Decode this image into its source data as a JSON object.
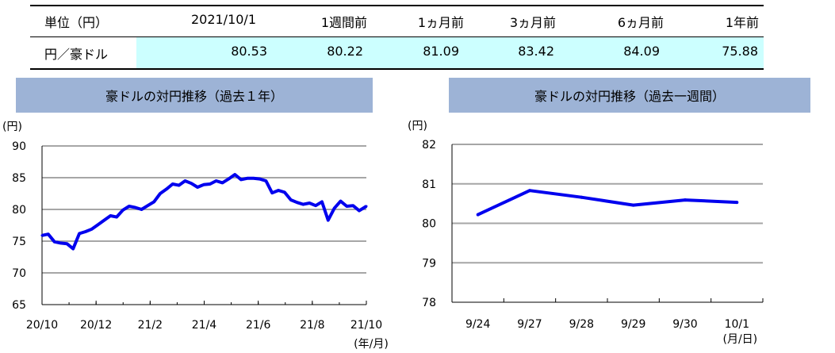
{
  "table": {
    "headers": [
      "単位（円）",
      "2021/10/1",
      "1週間前",
      "1ヵ月前",
      "3ヵ月前",
      "6ヵ月前",
      "1年前"
    ],
    "row": {
      "label": "円／豪ドル",
      "values": [
        "80.53",
        "80.22",
        "81.09",
        "83.42",
        "84.09",
        "75.88"
      ]
    },
    "highlight_color": "#ccffff"
  },
  "colors": {
    "panel_title_bg": "#9db3d6",
    "series": "#0000ee",
    "grid": "#a6a6a6"
  },
  "chart_data": [
    {
      "type": "line",
      "title": "豪ドルの対円推移（過去１年）",
      "yunit": "(円)",
      "xunit": "(年/月)",
      "ylim": [
        65,
        90
      ],
      "yticks": [
        "90",
        "85",
        "80",
        "75",
        "70",
        "65"
      ],
      "xticks": [
        "20/10",
        "20/12",
        "21/2",
        "21/4",
        "21/6",
        "21/8",
        "21/10"
      ],
      "grid": true,
      "series": [
        {
          "x": [
            "2020-10-01",
            "2020-10-08",
            "2020-10-15",
            "2020-10-22",
            "2020-10-29",
            "2020-11-05",
            "2020-11-12",
            "2020-11-19",
            "2020-11-26",
            "2020-12-03",
            "2020-12-10",
            "2020-12-17",
            "2020-12-24",
            "2020-12-31",
            "2021-01-07",
            "2021-01-14",
            "2021-01-21",
            "2021-01-28",
            "2021-02-04",
            "2021-02-11",
            "2021-02-18",
            "2021-02-25",
            "2021-03-04",
            "2021-03-11",
            "2021-03-18",
            "2021-03-25",
            "2021-04-01",
            "2021-04-08",
            "2021-04-15",
            "2021-04-22",
            "2021-04-29",
            "2021-05-06",
            "2021-05-13",
            "2021-05-20",
            "2021-05-27",
            "2021-06-03",
            "2021-06-10",
            "2021-06-17",
            "2021-06-24",
            "2021-07-01",
            "2021-07-08",
            "2021-07-15",
            "2021-07-22",
            "2021-07-29",
            "2021-08-05",
            "2021-08-12",
            "2021-08-19",
            "2021-08-26",
            "2021-09-02",
            "2021-09-09",
            "2021-09-16",
            "2021-09-23",
            "2021-10-01"
          ],
          "values": [
            75.9,
            76.1,
            74.9,
            74.7,
            74.6,
            73.8,
            76.2,
            76.5,
            76.9,
            77.6,
            78.3,
            79.0,
            78.8,
            79.9,
            80.5,
            80.3,
            80.0,
            80.6,
            81.2,
            82.5,
            83.2,
            84.0,
            83.8,
            84.5,
            84.1,
            83.5,
            83.9,
            84.0,
            84.5,
            84.2,
            84.8,
            85.5,
            84.7,
            84.9,
            84.9,
            84.8,
            84.5,
            82.6,
            83.0,
            82.7,
            81.5,
            81.1,
            80.8,
            81.0,
            80.6,
            81.2,
            78.3,
            80.2,
            81.3,
            80.5,
            80.6,
            79.8,
            80.5
          ]
        }
      ]
    },
    {
      "type": "line",
      "title": "豪ドルの対円推移（過去一週間）",
      "yunit": "(円)",
      "xunit": "(月/日)",
      "ylim": [
        78,
        82
      ],
      "yticks": [
        "82",
        "81",
        "80",
        "79",
        "78"
      ],
      "categories": [
        "9/24",
        "9/27",
        "9/28",
        "9/29",
        "9/30",
        "10/1"
      ],
      "grid": true,
      "series": [
        {
          "values": [
            80.22,
            80.83,
            80.66,
            80.46,
            80.59,
            80.53
          ]
        }
      ]
    }
  ]
}
